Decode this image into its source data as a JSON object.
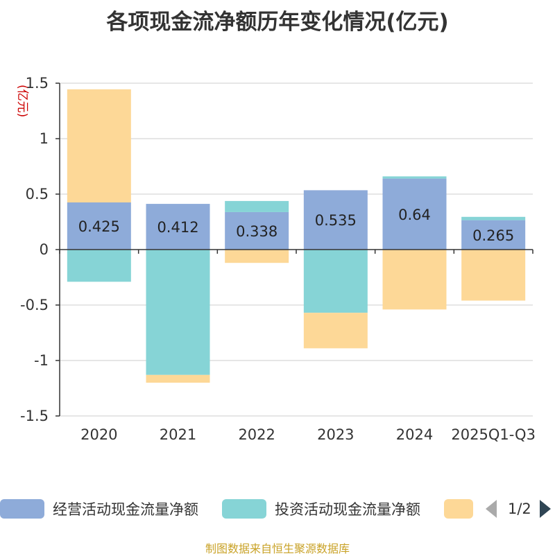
{
  "title": "各项现金流净额历年变化情况(亿元)",
  "chart_data": {
    "type": "bar",
    "stacked": true,
    "unit_label": "(亿元)",
    "categories": [
      "2020",
      "2021",
      "2022",
      "2023",
      "2024",
      "2025Q1-Q3"
    ],
    "ylim": [
      -1.5,
      1.5
    ],
    "yticks": [
      1.5,
      1,
      0.5,
      0,
      -0.5,
      -1,
      -1.5
    ],
    "ytick_labels": [
      "1.5",
      "1",
      "0.5",
      "0",
      "-0.5",
      "-1",
      "-1.5"
    ],
    "grid": true,
    "legend_position": "bottom",
    "series": [
      {
        "name": "经营活动现金流量净额",
        "color": "#8eabd9",
        "values": [
          0.425,
          0.412,
          0.338,
          0.535,
          0.64,
          0.265
        ],
        "labels": [
          "0.425",
          "0.412",
          "0.338",
          "0.535",
          "0.64",
          "0.265"
        ]
      },
      {
        "name": "投资活动现金流量净额",
        "color": "#86d4d6",
        "values": [
          -0.29,
          -1.13,
          0.1,
          -0.57,
          0.02,
          0.03
        ]
      },
      {
        "name": "",
        "color": "#fdd897",
        "values": [
          1.02,
          -0.07,
          -0.12,
          -0.32,
          -0.54,
          -0.46
        ]
      }
    ]
  },
  "legend": {
    "items": [
      {
        "label": "经营活动现金流量净额",
        "color": "#8eabd9"
      },
      {
        "label": "投资活动现金流量净额",
        "color": "#86d4d6"
      },
      {
        "label": "",
        "color": "#fdd897"
      }
    ],
    "page_text": "1/2"
  },
  "footer": "制图数据来自恒生聚源数据库"
}
